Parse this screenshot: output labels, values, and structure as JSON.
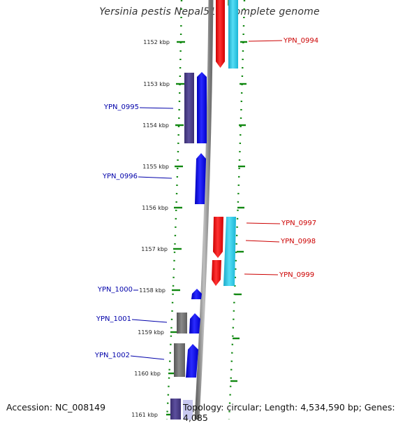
{
  "title": "Yersinia pestis Nepal516, complete genome",
  "footer": {
    "accession": "Accession: NC_008149",
    "topology": "Topology: circular; Length: 4,534,590 bp; Genes: 4,085"
  },
  "colors": {
    "forward_cds": "#ff0000",
    "forward_rna": "#22ccee",
    "reverse_cds": "#0000ff",
    "reverse_rna": "#4d3f8a",
    "reverse_gray": "#7a7a7a",
    "backbone": "#9a9a9a",
    "ticks": "#118811",
    "forward_label": "#cc0000",
    "reverse_label": "#0000aa"
  },
  "scale_labels": [
    "1152 kbp",
    "1153 kbp",
    "1154 kbp",
    "1155 kbp",
    "1156 kbp",
    "1157 kbp",
    "1158 kbp",
    "1159 kbp",
    "1160 kbp",
    "1161 kbp"
  ],
  "forward_genes": [
    "YPN_0994",
    "YPN_0997",
    "YPN_0998",
    "YPN_0999"
  ],
  "reverse_genes": [
    "YPN_0995",
    "YPN_0996",
    "YPN_1000",
    "YPN_1001",
    "YPN_1002"
  ]
}
